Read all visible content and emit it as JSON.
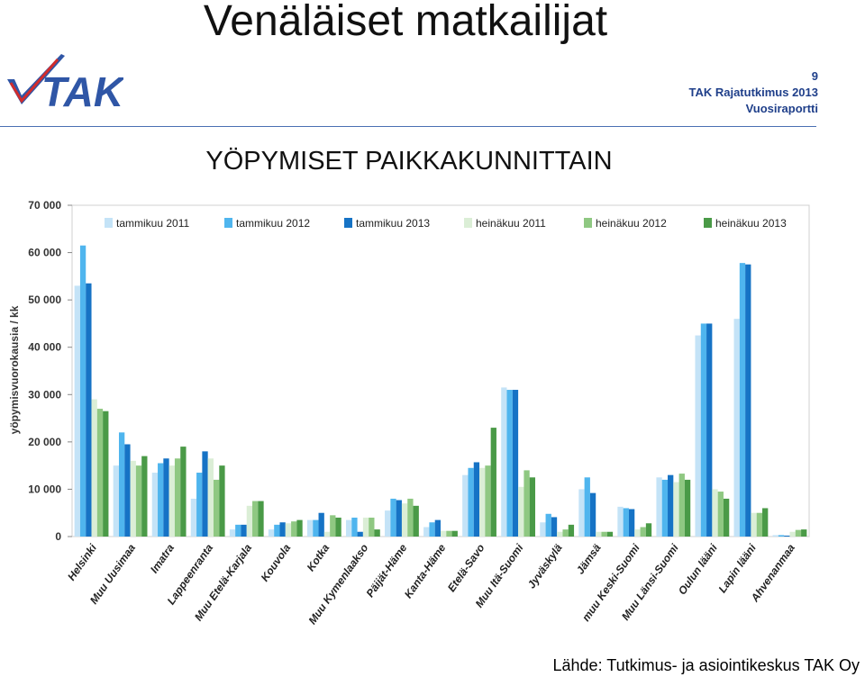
{
  "header": {
    "title": "Venäläiset matkailijat",
    "logo_text": "TAK",
    "page_number": "9",
    "report_line1": "TAK Rajatutkimus 2013",
    "report_line2": "Vuosiraportti"
  },
  "source_note": "Lähde: Tutkimus- ja asiointikeskus TAK Oy",
  "colors": {
    "tammikuu_2011": "#c4e3f7",
    "tammikuu_2012": "#4fb5ee",
    "tammikuu_2013": "#1673c5",
    "heinakuu_2011": "#dbeed6",
    "heinakuu_2012": "#8fc882",
    "heinakuu_2013": "#4a9a47",
    "logo_blue": "#2f56a6",
    "logo_red": "#d22c2c"
  },
  "chart_data": {
    "type": "bar",
    "title": "YÖPYMISET PAIKKAKUNNITTAIN",
    "xlabel": "",
    "ylabel": "yöpymisvuorokausia / kk",
    "ylim": [
      0,
      70000
    ],
    "yticks": [
      "0",
      "10 000",
      "20 000",
      "30 000",
      "40 000",
      "50 000",
      "60 000",
      "70 000"
    ],
    "grid": false,
    "legend_position": "top",
    "categories": [
      "Helsinki",
      "Muu Uusimaa",
      "Imatra",
      "Lappeenranta",
      "Muu Etelä-Karjala",
      "Kouvola",
      "Kotka",
      "Muu Kymenlaakso",
      "Päijät-Häme",
      "Kanta-Häme",
      "Etelä-Savo",
      "Muu Itä-Suomi",
      "Jyväskylä",
      "Jämsä",
      "muu Keski-Suomi",
      "Muu Länsi-Suomi",
      "Oulun lääni",
      "Lapin lääni",
      "Ahvenanmaa"
    ],
    "series": [
      {
        "name": "tammikuu 2011",
        "color": "#c4e3f7",
        "values": [
          53000,
          15000,
          13500,
          8000,
          1500,
          1500,
          3500,
          3500,
          5500,
          2000,
          13000,
          31500,
          3000,
          10000,
          6300,
          12500,
          42500,
          46000,
          300
        ]
      },
      {
        "name": "tammikuu 2012",
        "color": "#4fb5ee",
        "values": [
          61500,
          22000,
          15500,
          13500,
          2500,
          2500,
          3500,
          4000,
          8000,
          3000,
          14500,
          31000,
          4800,
          12500,
          6000,
          12000,
          45000,
          57800,
          300
        ]
      },
      {
        "name": "tammikuu 2013",
        "color": "#1673c5",
        "values": [
          53500,
          19500,
          16500,
          18000,
          2500,
          3000,
          5000,
          1000,
          7700,
          3500,
          15700,
          31000,
          4100,
          9200,
          5800,
          13000,
          45000,
          57500,
          200
        ]
      },
      {
        "name": "heinäkuu 2011",
        "color": "#dbeed6",
        "values": [
          29000,
          16000,
          15000,
          16500,
          6500,
          2800,
          1000,
          4000,
          7000,
          1200,
          14500,
          10500,
          1000,
          1000,
          1500,
          11500,
          10000,
          5000,
          1000
        ]
      },
      {
        "name": "heinäkuu 2012",
        "color": "#8fc882",
        "values": [
          27000,
          15000,
          16500,
          12000,
          7500,
          3200,
          4500,
          4000,
          8000,
          1200,
          15000,
          14000,
          1500,
          1000,
          2000,
          13300,
          9500,
          5000,
          1400
        ]
      },
      {
        "name": "heinäkuu 2013",
        "color": "#4a9a47",
        "values": [
          26500,
          17000,
          19000,
          15000,
          7500,
          3500,
          4000,
          1500,
          6500,
          1200,
          23000,
          12500,
          2500,
          1000,
          2800,
          12000,
          8000,
          6000,
          1500
        ]
      }
    ]
  }
}
